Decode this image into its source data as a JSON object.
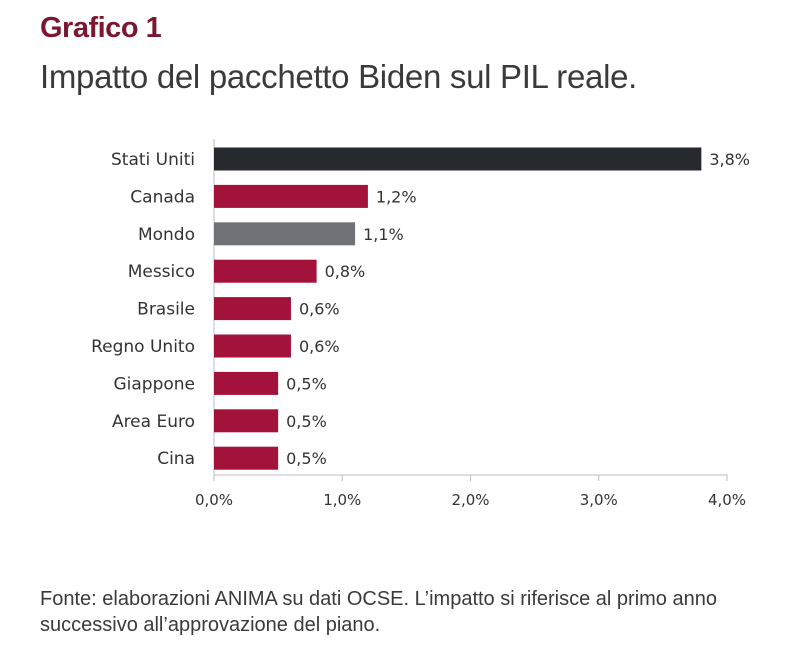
{
  "heading": "Grafico 1",
  "chart_data": {
    "type": "bar",
    "orientation": "horizontal",
    "title": "Impatto del pacchetto Biden sul PIL reale.",
    "xlabel": "",
    "ylabel": "",
    "categories": [
      "Stati Uniti",
      "Canada",
      "Mondo",
      "Messico",
      "Brasile",
      "Regno Unito",
      "Giappone",
      "Area Euro",
      "Cina"
    ],
    "values": [
      3.8,
      1.2,
      1.1,
      0.8,
      0.6,
      0.6,
      0.5,
      0.5,
      0.5
    ],
    "value_labels": [
      "3,8%",
      "1,2%",
      "1,1%",
      "0,8%",
      "0,6%",
      "0,6%",
      "0,5%",
      "0,5%",
      "0,5%"
    ],
    "colors": [
      "#262a2e",
      "#a3123a",
      "#6f7378",
      "#a3123a",
      "#a3123a",
      "#a3123a",
      "#a3123a",
      "#a3123a",
      "#a3123a"
    ],
    "xlim": [
      0,
      4
    ],
    "ticks": [
      0,
      1,
      2,
      3,
      4
    ],
    "tick_labels": [
      "0,0%",
      "1,0%",
      "2,0%",
      "3,0%",
      "4,0%"
    ],
    "grid": false,
    "legend": "none"
  },
  "source": "Fonte: elaborazioni ANIMA su dati OCSE. L’impatto si riferisce al primo anno successivo all’approvazione del piano."
}
